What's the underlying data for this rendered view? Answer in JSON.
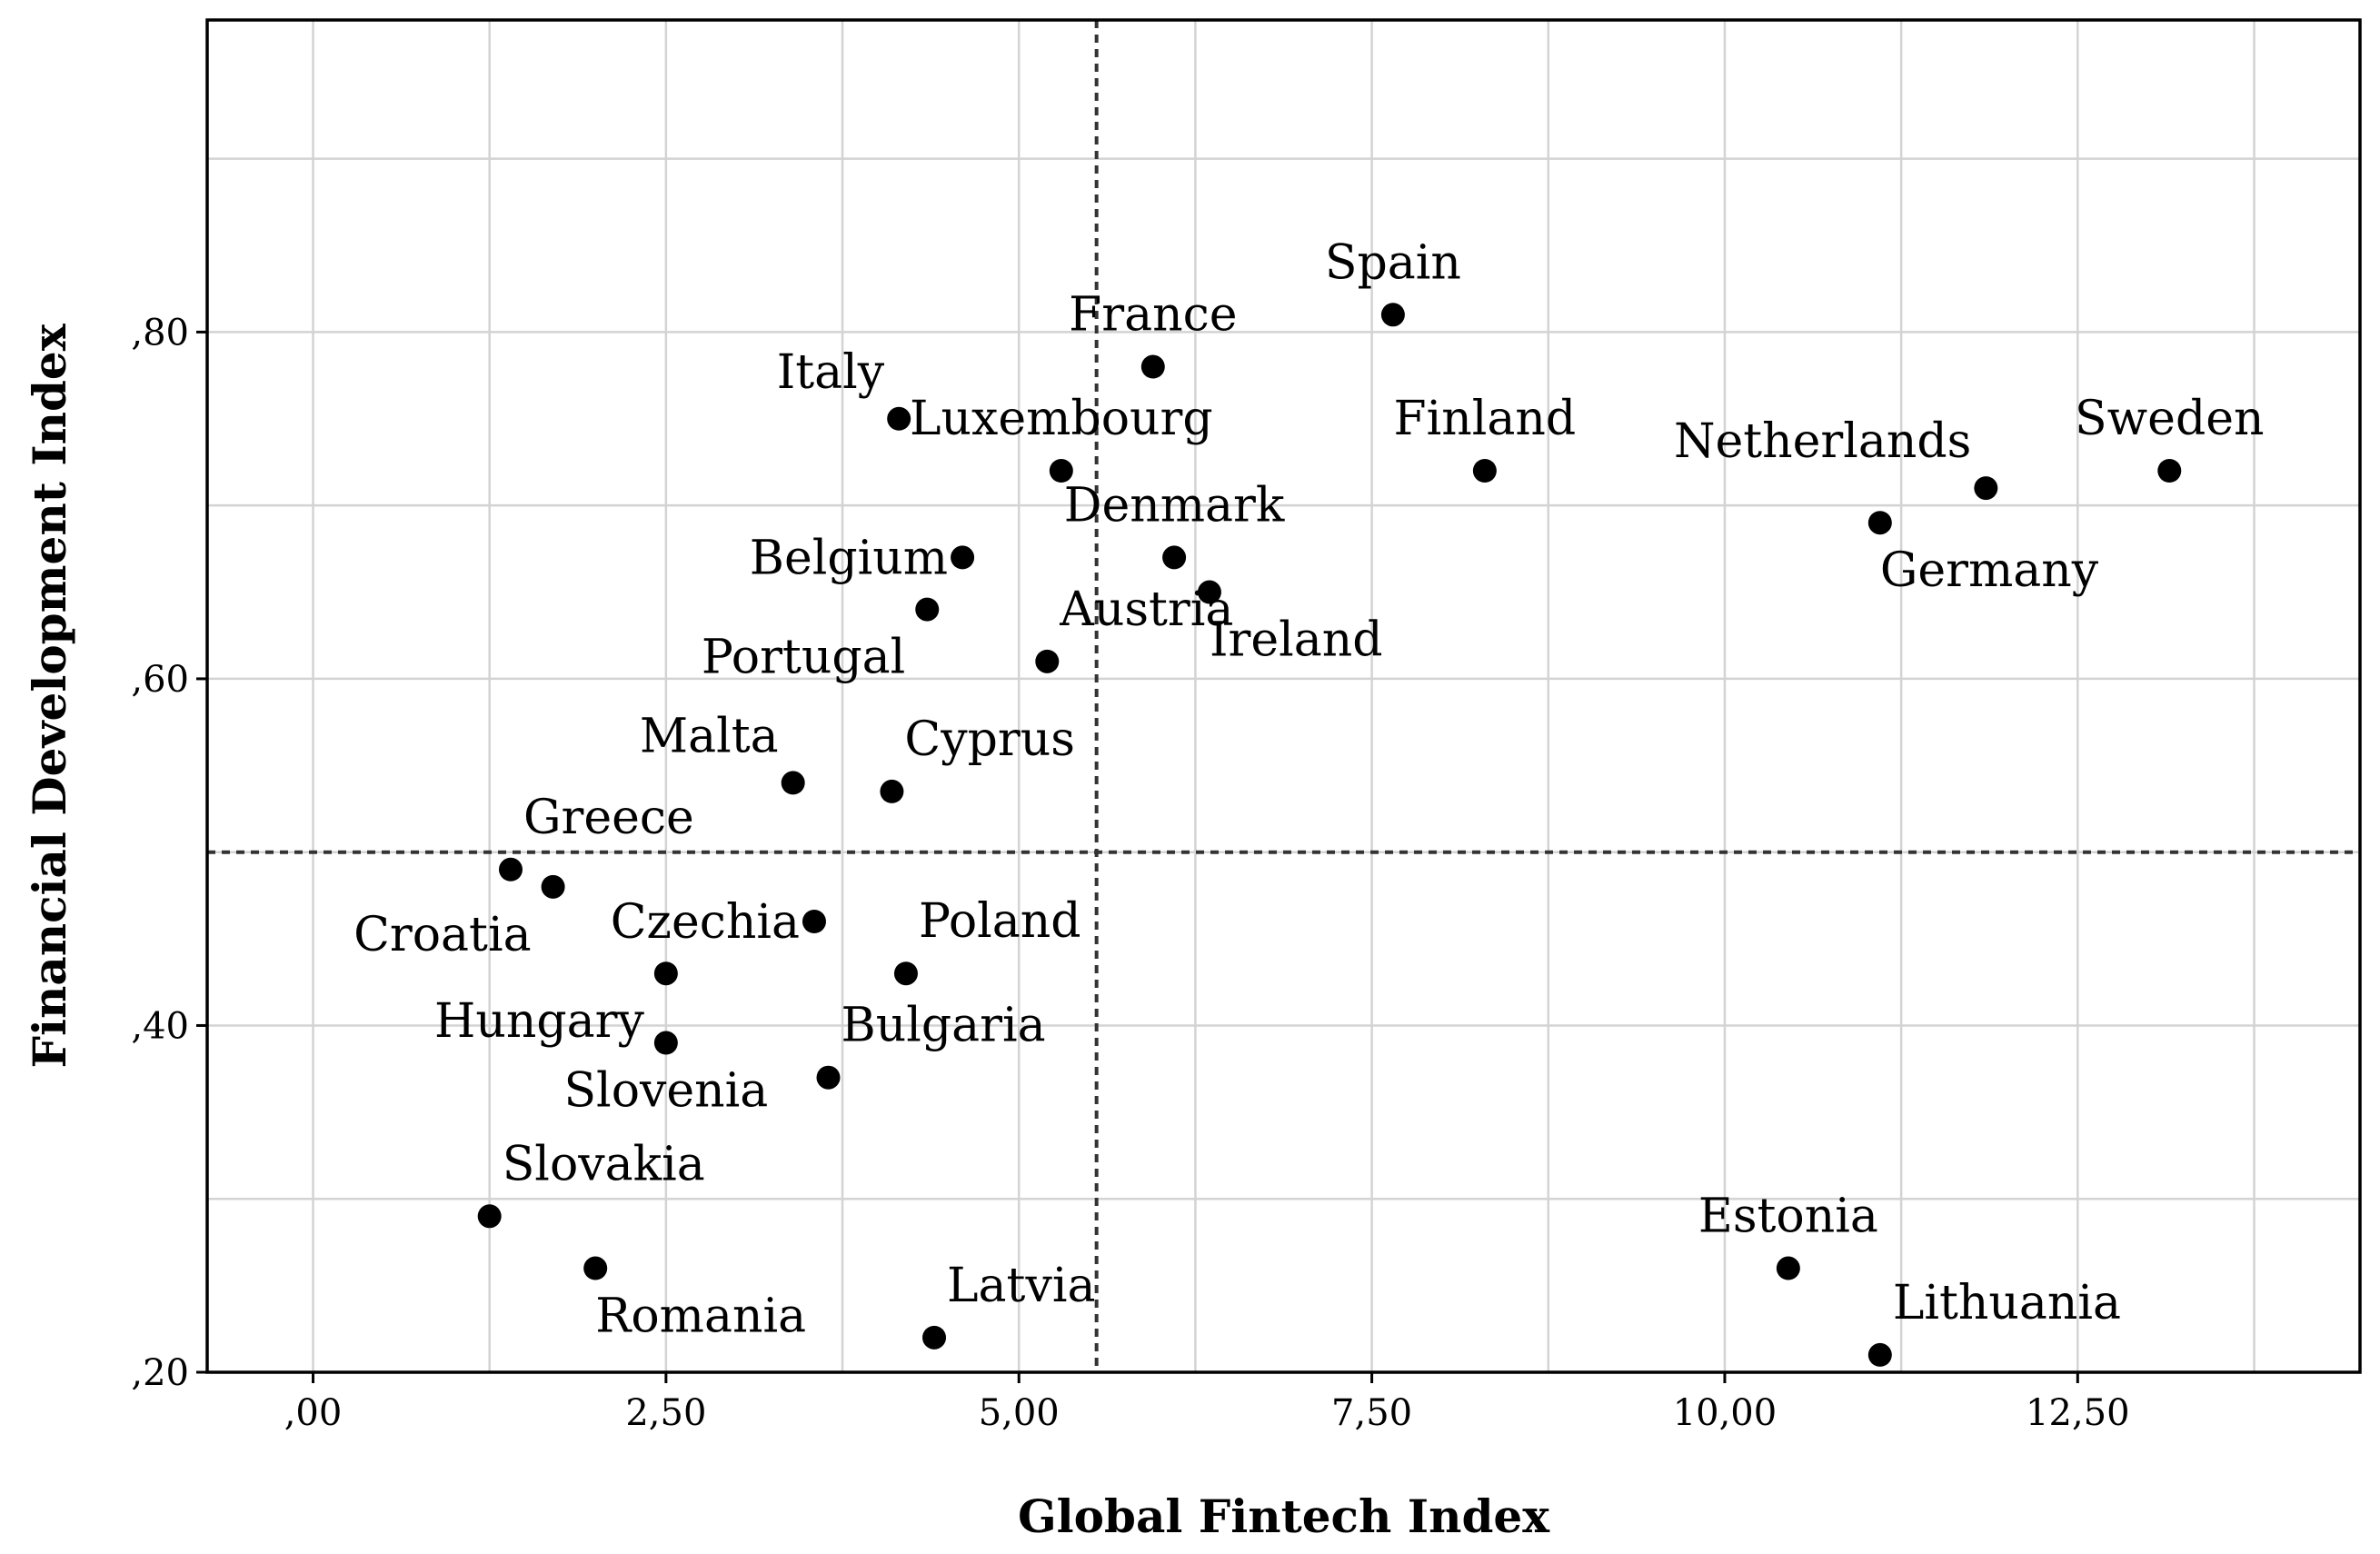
{
  "chart_data": {
    "type": "scatter",
    "xlabel": "Global Fintech Index",
    "ylabel": "Financial Development Index",
    "xlim": [
      -0.75,
      14.5
    ],
    "ylim": [
      0.2,
      0.98
    ],
    "x_ticks": [
      0,
      2.5,
      5,
      7.5,
      10,
      12.5
    ],
    "x_tick_labels": [
      ",00",
      "2,50",
      "5,00",
      "7,50",
      "10,00",
      "12,50"
    ],
    "y_ticks": [
      0.2,
      0.4,
      0.6,
      0.8
    ],
    "y_tick_labels": [
      ",20",
      ",40",
      ",60",
      ",80"
    ],
    "grid": true,
    "reference_lines": {
      "x": 5.55,
      "y": 0.5
    },
    "points": [
      {
        "label": "Spain",
        "x": 7.65,
        "y": 0.81,
        "label_pos": "above"
      },
      {
        "label": "France",
        "x": 5.95,
        "y": 0.78,
        "label_pos": "above"
      },
      {
        "label": "Italy",
        "x": 4.15,
        "y": 0.75,
        "label_pos": "above-left"
      },
      {
        "label": "Luxembourg",
        "x": 5.3,
        "y": 0.72,
        "label_pos": "above"
      },
      {
        "label": "Finland",
        "x": 8.3,
        "y": 0.72,
        "label_pos": "above"
      },
      {
        "label": "Netherlands",
        "x": 11.85,
        "y": 0.71,
        "label_pos": "above-left"
      },
      {
        "label": "Sweden",
        "x": 13.15,
        "y": 0.72,
        "label_pos": "above"
      },
      {
        "label": "Germany",
        "x": 11.1,
        "y": 0.69,
        "label_pos": "below-right"
      },
      {
        "label": "Denmark",
        "x": 6.1,
        "y": 0.67,
        "label_pos": "above"
      },
      {
        "label": "Belgium",
        "x": 4.6,
        "y": 0.67,
        "label_pos": "left"
      },
      {
        "label": "Ireland",
        "x": 6.35,
        "y": 0.65,
        "label_pos": "below-right"
      },
      {
        "label": "Portugal",
        "x": 4.35,
        "y": 0.64,
        "label_pos": "below-left"
      },
      {
        "label": "Austria",
        "x": 5.2,
        "y": 0.61,
        "label_pos": "above-right"
      },
      {
        "label": "Malta",
        "x": 3.4,
        "y": 0.54,
        "label_pos": "above-left"
      },
      {
        "label": "Cyprus",
        "x": 4.1,
        "y": 0.535,
        "label_pos": "above-right"
      },
      {
        "label": "Greece",
        "x": 1.4,
        "y": 0.49,
        "label_pos": "above-right"
      },
      {
        "label": "Croatia",
        "x": 1.7,
        "y": 0.48,
        "label_pos": "below-left"
      },
      {
        "label": "Czechia",
        "x": 3.55,
        "y": 0.46,
        "label_pos": "left"
      },
      {
        "label": "Poland",
        "x": 4.2,
        "y": 0.43,
        "label_pos": "above-right"
      },
      {
        "label": "Hungary",
        "x": 2.5,
        "y": 0.43,
        "label_pos": "below-left"
      },
      {
        "label": "Slovenia",
        "x": 2.5,
        "y": 0.39,
        "label_pos": "below"
      },
      {
        "label": "Bulgaria",
        "x": 3.65,
        "y": 0.37,
        "label_pos": "above-right"
      },
      {
        "label": "Slovakia",
        "x": 1.25,
        "y": 0.29,
        "label_pos": "above-right"
      },
      {
        "label": "Romania",
        "x": 2.0,
        "y": 0.26,
        "label_pos": "below-right"
      },
      {
        "label": "Latvia",
        "x": 4.4,
        "y": 0.22,
        "label_pos": "above-right"
      },
      {
        "label": "Estonia",
        "x": 10.45,
        "y": 0.26,
        "label_pos": "above"
      },
      {
        "label": "Lithuania",
        "x": 11.1,
        "y": 0.21,
        "label_pos": "above-right"
      }
    ]
  }
}
